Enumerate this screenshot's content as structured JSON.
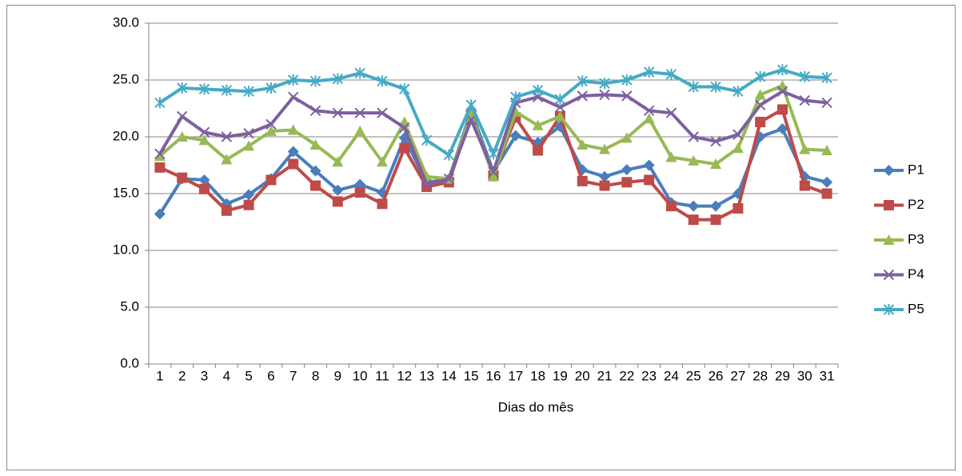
{
  "chart_data": {
    "type": "line",
    "x_label": "Dias do mês",
    "categories": [
      "1",
      "2",
      "3",
      "4",
      "5",
      "6",
      "7",
      "8",
      "9",
      "10",
      "11",
      "12",
      "13",
      "14",
      "15",
      "16",
      "17",
      "18",
      "19",
      "20",
      "21",
      "22",
      "23",
      "24",
      "25",
      "26",
      "27",
      "28",
      "29",
      "30",
      "31"
    ],
    "ylim": [
      0,
      30
    ],
    "yticks": [
      {
        "value": 0,
        "label": "0.0"
      },
      {
        "value": 5,
        "label": "5.0"
      },
      {
        "value": 10,
        "label": "10.0"
      },
      {
        "value": 15,
        "label": "15.0"
      },
      {
        "value": 20,
        "label": "20.0"
      },
      {
        "value": 25,
        "label": "25.0"
      },
      {
        "value": 30,
        "label": "30.0"
      }
    ],
    "grid": true,
    "legend": "right",
    "series": [
      {
        "name": "P1",
        "color": "#4a7ebb",
        "marker": "diamond",
        "values": [
          13.2,
          16.3,
          16.2,
          14.1,
          14.9,
          16.3,
          18.7,
          17.0,
          15.3,
          15.8,
          15.1,
          19.9,
          16.0,
          16.3,
          22.3,
          16.9,
          20.1,
          19.5,
          20.9,
          17.1,
          16.5,
          17.1,
          17.5,
          14.2,
          13.9,
          13.9,
          15.0,
          20.0,
          20.7,
          16.5,
          16.0
        ]
      },
      {
        "name": "P2",
        "color": "#be4b48",
        "marker": "square",
        "values": [
          17.3,
          16.4,
          15.4,
          13.5,
          14.0,
          16.2,
          17.6,
          15.7,
          14.3,
          15.1,
          14.1,
          19.0,
          15.6,
          16.0,
          21.9,
          16.6,
          21.7,
          18.8,
          21.8,
          16.1,
          15.7,
          16.0,
          16.2,
          13.9,
          12.7,
          12.7,
          13.7,
          21.3,
          22.4,
          15.7,
          15.0
        ]
      },
      {
        "name": "P3",
        "color": "#98b954",
        "marker": "triangle",
        "values": [
          18.3,
          20.0,
          19.7,
          18.0,
          19.2,
          20.5,
          20.6,
          19.3,
          17.8,
          20.5,
          17.8,
          21.3,
          16.5,
          16.3,
          22.0,
          16.5,
          22.2,
          21.0,
          21.8,
          19.3,
          18.9,
          19.9,
          21.6,
          18.2,
          17.9,
          17.6,
          19.0,
          23.7,
          24.5,
          18.9,
          18.8
        ]
      },
      {
        "name": "P4",
        "color": "#7d60a0",
        "marker": "x",
        "values": [
          18.5,
          21.8,
          20.4,
          20.0,
          20.3,
          21.1,
          23.5,
          22.3,
          22.1,
          22.1,
          22.1,
          20.8,
          15.8,
          16.3,
          21.5,
          16.9,
          23.0,
          23.5,
          22.6,
          23.6,
          23.7,
          23.6,
          22.3,
          22.1,
          20.0,
          19.6,
          20.2,
          22.8,
          24.0,
          23.2,
          23.0
        ]
      },
      {
        "name": "P5",
        "color": "#46aac5",
        "marker": "star",
        "values": [
          23.0,
          24.3,
          24.2,
          24.1,
          24.0,
          24.3,
          25.0,
          24.9,
          25.1,
          25.6,
          24.9,
          24.2,
          19.7,
          18.4,
          22.8,
          18.5,
          23.5,
          24.1,
          23.3,
          24.9,
          24.7,
          25.0,
          25.7,
          25.5,
          24.4,
          24.4,
          24.0,
          25.3,
          25.9,
          25.3,
          25.2
        ]
      }
    ]
  }
}
